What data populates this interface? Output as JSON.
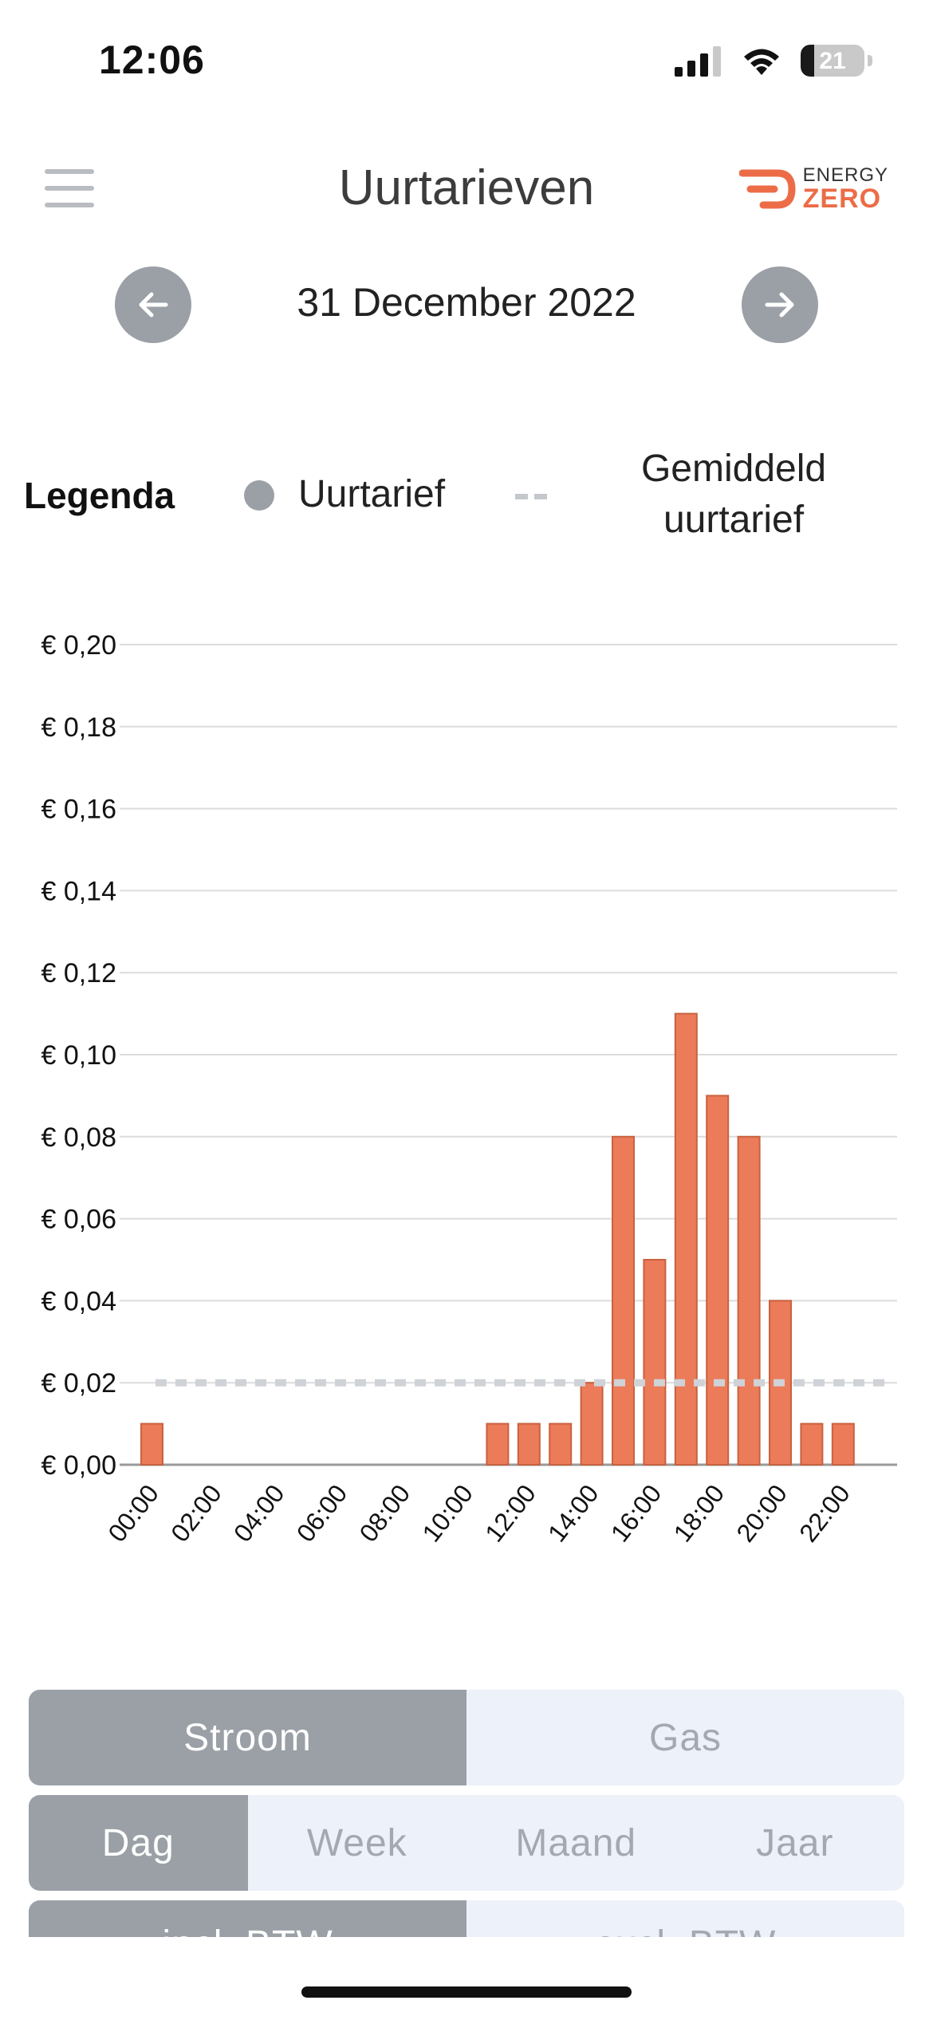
{
  "status_bar": {
    "time": "12:06",
    "battery": "21",
    "battery_level": 0.21
  },
  "header": {
    "title": "Uurtarieven",
    "logo_line1": "ENERGY",
    "logo_line2": "ZERO"
  },
  "date_nav": {
    "date": "31 December 2022"
  },
  "legend": {
    "title": "Legenda",
    "item1": "Uurtarief",
    "item2": "Gemiddeld uurtarief"
  },
  "chart_data": {
    "type": "bar",
    "categories": [
      "00:00",
      "01:00",
      "02:00",
      "03:00",
      "04:00",
      "05:00",
      "06:00",
      "07:00",
      "08:00",
      "09:00",
      "10:00",
      "11:00",
      "12:00",
      "13:00",
      "14:00",
      "15:00",
      "16:00",
      "17:00",
      "18:00",
      "19:00",
      "20:00",
      "21:00",
      "22:00",
      "23:00"
    ],
    "values": [
      0.01,
      0,
      0,
      0,
      0,
      0,
      0,
      0,
      0,
      0,
      0,
      0.01,
      0.01,
      0.01,
      0.02,
      0.08,
      0.05,
      0.11,
      0.09,
      0.08,
      0.04,
      0.01,
      0.01,
      0
    ],
    "x_tick_labels": [
      "00:00",
      "02:00",
      "04:00",
      "06:00",
      "08:00",
      "10:00",
      "12:00",
      "14:00",
      "16:00",
      "18:00",
      "20:00",
      "22:00"
    ],
    "y_tick_labels": [
      "€ 0,00",
      "€ 0,02",
      "€ 0,04",
      "€ 0,06",
      "€ 0,08",
      "€ 0,10",
      "€ 0,12",
      "€ 0,14",
      "€ 0,16",
      "€ 0,18",
      "€ 0,20"
    ],
    "ylim": [
      0,
      0.2
    ],
    "average": 0.02,
    "bar_color": "#ec7b5a",
    "bar_stroke": "#c8623f",
    "average_color": "#cfd2d6",
    "grid": true
  },
  "tabs_energy": [
    {
      "label": "Stroom",
      "active": true
    },
    {
      "label": "Gas",
      "active": false
    }
  ],
  "tabs_period": [
    {
      "label": "Dag",
      "active": true
    },
    {
      "label": "Week",
      "active": false
    },
    {
      "label": "Maand",
      "active": false
    },
    {
      "label": "Jaar",
      "active": false
    }
  ],
  "tabs_vat": [
    {
      "label": "incl. BTW",
      "active": true
    },
    {
      "label": "excl. BTW",
      "active": false
    }
  ],
  "colors": {
    "accent": "#ec6c47",
    "button_gray": "#9aa0a6",
    "segment_bg": "#edf1f9"
  }
}
